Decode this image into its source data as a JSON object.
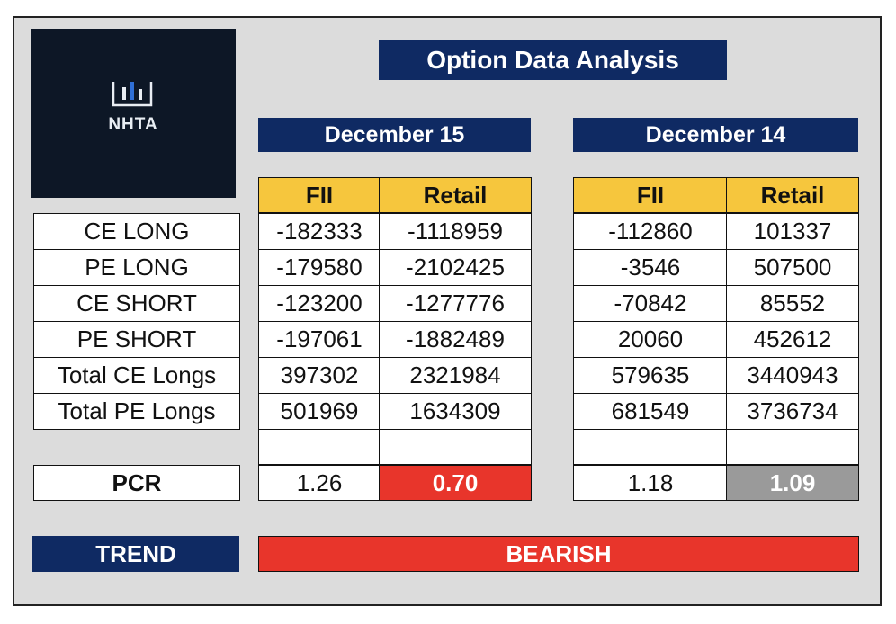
{
  "logo": {
    "text": "NHTA",
    "icon": "candlestick-chart-icon"
  },
  "title": "Option Data Analysis",
  "columns": {
    "fii": "FII",
    "retail": "Retail"
  },
  "rows": [
    "CE LONG",
    "PE LONG",
    "CE SHORT",
    "PE SHORT",
    "Total CE Longs",
    "Total PE Longs"
  ],
  "pcr_label": "PCR",
  "panels": [
    {
      "date": "December 15",
      "fii": [
        "-182333",
        "-179580",
        "-123200",
        "-197061",
        "397302",
        "501969"
      ],
      "retail": [
        "-1118959",
        "-2102425",
        "-1277776",
        "-1882489",
        "2321984",
        "1634309"
      ],
      "pcr_fii": "1.26",
      "pcr_retail": "0.70"
    },
    {
      "date": "December 14",
      "fii": [
        "-112860",
        "-3546",
        "-70842",
        "20060",
        "579635",
        "681549"
      ],
      "retail": [
        "101337",
        "507500",
        "85552",
        "452612",
        "3440943",
        "3736734"
      ],
      "pcr_fii": "1.18",
      "pcr_retail": "1.09"
    }
  ],
  "trend": {
    "label": "TREND",
    "value": "BEARISH"
  },
  "colors": {
    "navy": "#0f2a63",
    "header_yellow": "#f6c63d",
    "bearish_red": "#e8352b",
    "neutral_grey": "#9a9a9a"
  }
}
